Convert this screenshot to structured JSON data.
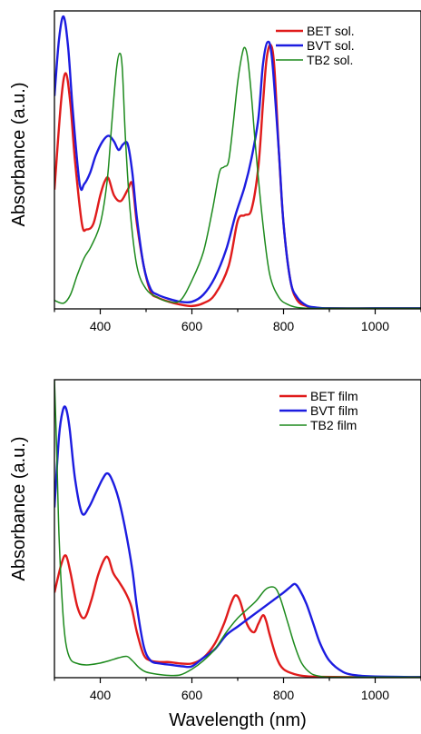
{
  "shared_xlabel": "Wavelength (nm)",
  "chart_data": [
    {
      "type": "line",
      "title": "",
      "xlabel": "",
      "ylabel": "Absorbance (a.u.)",
      "xlim": [
        300,
        1100
      ],
      "ylim": [
        0,
        1.05
      ],
      "xticks": [
        400,
        600,
        800,
        1000
      ],
      "x_tick_labels": [
        "400",
        "600",
        "800",
        "1000"
      ],
      "y_tick_labels": [],
      "grid": false,
      "legend_position": "top-right",
      "series": [
        {
          "name": "BET sol.",
          "color": "#e01b1b",
          "x": [
            300,
            315,
            325,
            335,
            345,
            360,
            370,
            385,
            400,
            410,
            418,
            430,
            445,
            460,
            470,
            480,
            495,
            510,
            525,
            550,
            575,
            600,
            625,
            650,
            680,
            700,
            715,
            730,
            745,
            755,
            763,
            772,
            780,
            790,
            800,
            815,
            830,
            850,
            870,
            900,
            1000,
            1100
          ],
          "y": [
            0.42,
            0.74,
            0.83,
            0.72,
            0.52,
            0.3,
            0.28,
            0.3,
            0.4,
            0.45,
            0.46,
            0.4,
            0.38,
            0.42,
            0.44,
            0.3,
            0.15,
            0.06,
            0.04,
            0.025,
            0.015,
            0.01,
            0.02,
            0.05,
            0.15,
            0.31,
            0.33,
            0.35,
            0.5,
            0.72,
            0.88,
            0.93,
            0.85,
            0.55,
            0.3,
            0.1,
            0.03,
            0.01,
            0.004,
            0.002,
            0.002,
            0.002
          ]
        },
        {
          "name": "BVT sol.",
          "color": "#1c1ce0",
          "x": [
            300,
            310,
            320,
            330,
            340,
            355,
            365,
            378,
            390,
            405,
            418,
            430,
            440,
            450,
            460,
            470,
            480,
            495,
            510,
            525,
            550,
            575,
            600,
            625,
            650,
            675,
            695,
            715,
            730,
            745,
            755,
            765,
            775,
            790,
            800,
            815,
            830,
            850,
            870,
            900,
            1000,
            1100
          ],
          "y": [
            0.75,
            0.95,
            1.03,
            0.92,
            0.7,
            0.44,
            0.44,
            0.48,
            0.54,
            0.59,
            0.61,
            0.59,
            0.56,
            0.58,
            0.58,
            0.48,
            0.32,
            0.15,
            0.07,
            0.05,
            0.035,
            0.025,
            0.025,
            0.05,
            0.11,
            0.21,
            0.33,
            0.43,
            0.53,
            0.67,
            0.86,
            0.94,
            0.88,
            0.55,
            0.3,
            0.1,
            0.04,
            0.012,
            0.005,
            0.002,
            0.002,
            0.002
          ]
        },
        {
          "name": "TB2 sol.",
          "color": "#1d8a1d",
          "x": [
            300,
            320,
            335,
            350,
            365,
            380,
            400,
            415,
            425,
            435,
            442,
            448,
            455,
            465,
            480,
            500,
            525,
            550,
            575,
            600,
            625,
            645,
            660,
            670,
            680,
            690,
            700,
            710,
            716,
            722,
            730,
            740,
            755,
            770,
            790,
            810,
            830,
            860,
            900,
            1000,
            1100
          ],
          "y": [
            0.03,
            0.02,
            0.05,
            0.12,
            0.18,
            0.22,
            0.3,
            0.45,
            0.65,
            0.84,
            0.9,
            0.85,
            0.6,
            0.35,
            0.15,
            0.07,
            0.04,
            0.025,
            0.03,
            0.1,
            0.2,
            0.35,
            0.48,
            0.5,
            0.52,
            0.65,
            0.8,
            0.9,
            0.92,
            0.88,
            0.75,
            0.55,
            0.3,
            0.12,
            0.04,
            0.015,
            0.005,
            0.002,
            0.002,
            0.002,
            0.002
          ]
        }
      ]
    },
    {
      "type": "line",
      "title": "",
      "xlabel": "Wavelength (nm)",
      "ylabel": "Absorbance (a.u.)",
      "xlim": [
        300,
        1100
      ],
      "ylim": [
        0,
        1.05
      ],
      "xticks": [
        400,
        600,
        800,
        1000
      ],
      "x_tick_labels": [
        "400",
        "600",
        "800",
        "1000"
      ],
      "y_tick_labels": [],
      "grid": false,
      "legend_position": "top-right",
      "series": [
        {
          "name": "BET film",
          "color": "#e01b1b",
          "x": [
            300,
            315,
            325,
            335,
            350,
            365,
            380,
            395,
            410,
            418,
            428,
            440,
            455,
            468,
            480,
            495,
            510,
            530,
            550,
            575,
            600,
            625,
            650,
            670,
            685,
            695,
            705,
            720,
            735,
            745,
            755,
            762,
            770,
            785,
            800,
            825,
            850,
            880,
            950,
            1100
          ],
          "y": [
            0.3,
            0.4,
            0.43,
            0.37,
            0.25,
            0.21,
            0.27,
            0.36,
            0.42,
            0.42,
            0.37,
            0.34,
            0.3,
            0.25,
            0.16,
            0.08,
            0.06,
            0.055,
            0.055,
            0.05,
            0.05,
            0.07,
            0.12,
            0.19,
            0.26,
            0.29,
            0.27,
            0.19,
            0.16,
            0.19,
            0.22,
            0.2,
            0.15,
            0.07,
            0.03,
            0.012,
            0.005,
            0.003,
            0.002,
            0.002
          ]
        },
        {
          "name": "BVT film",
          "color": "#1c1ce0",
          "x": [
            300,
            310,
            318,
            325,
            333,
            345,
            360,
            375,
            390,
            405,
            415,
            425,
            440,
            455,
            470,
            480,
            495,
            510,
            530,
            555,
            580,
            600,
            625,
            650,
            675,
            700,
            725,
            750,
            775,
            800,
            815,
            825,
            835,
            850,
            865,
            880,
            900,
            930,
            960,
            1000,
            1100
          ],
          "y": [
            0.6,
            0.85,
            0.94,
            0.95,
            0.88,
            0.7,
            0.58,
            0.6,
            0.65,
            0.7,
            0.72,
            0.7,
            0.63,
            0.52,
            0.38,
            0.25,
            0.11,
            0.06,
            0.05,
            0.045,
            0.04,
            0.04,
            0.07,
            0.1,
            0.15,
            0.18,
            0.21,
            0.24,
            0.27,
            0.3,
            0.32,
            0.33,
            0.31,
            0.26,
            0.19,
            0.12,
            0.06,
            0.02,
            0.008,
            0.004,
            0.002
          ]
        },
        {
          "name": "TB2 film",
          "color": "#1d8a1d",
          "x": [
            300,
            305,
            310,
            318,
            325,
            335,
            350,
            370,
            395,
            420,
            440,
            458,
            470,
            485,
            500,
            525,
            550,
            575,
            600,
            625,
            650,
            675,
            700,
            720,
            740,
            760,
            775,
            785,
            795,
            810,
            825,
            840,
            860,
            880,
            900,
            1000,
            1100
          ],
          "y": [
            1.05,
            0.8,
            0.5,
            0.24,
            0.12,
            0.065,
            0.05,
            0.045,
            0.05,
            0.06,
            0.07,
            0.075,
            0.06,
            0.035,
            0.02,
            0.012,
            0.008,
            0.01,
            0.03,
            0.06,
            0.1,
            0.16,
            0.21,
            0.24,
            0.27,
            0.31,
            0.32,
            0.31,
            0.27,
            0.19,
            0.11,
            0.05,
            0.015,
            0.005,
            0.002,
            0.002,
            0.002
          ]
        }
      ]
    }
  ]
}
